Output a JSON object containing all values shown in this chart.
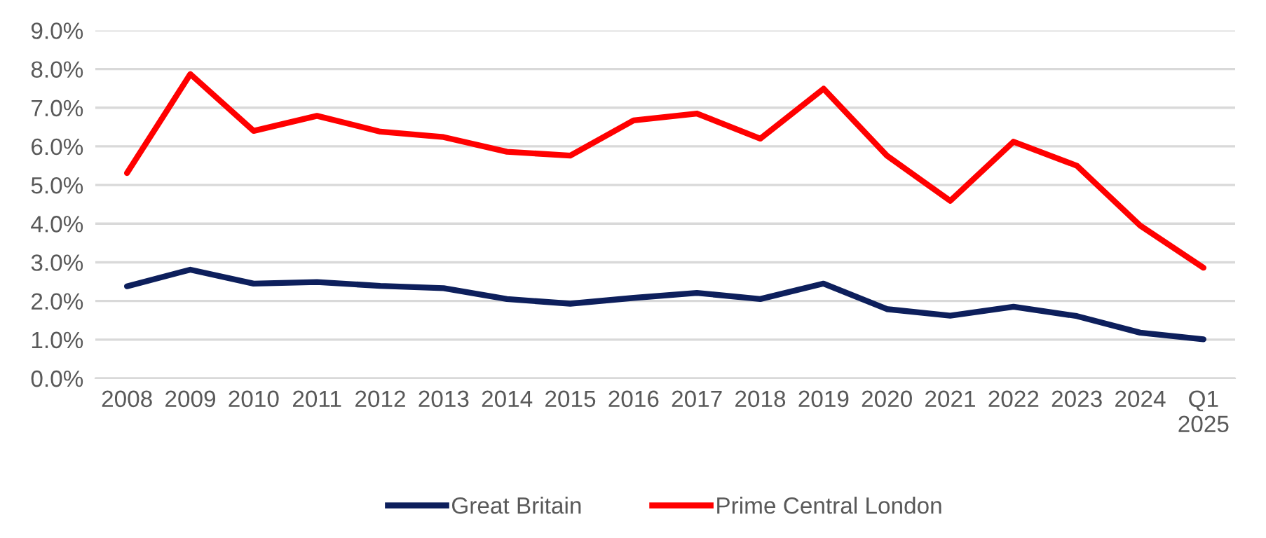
{
  "chart_data": {
    "type": "line",
    "categories": [
      "2008",
      "2009",
      "2010",
      "2011",
      "2012",
      "2013",
      "2014",
      "2015",
      "2016",
      "2017",
      "2018",
      "2019",
      "2020",
      "2021",
      "2022",
      "2023",
      "2024",
      "Q1\n2025"
    ],
    "series": [
      {
        "name": "Great Britain",
        "color": "#0d1f5c",
        "values": [
          2.38,
          2.81,
          2.45,
          2.49,
          2.39,
          2.33,
          2.05,
          1.93,
          2.08,
          2.21,
          2.05,
          2.45,
          1.79,
          1.62,
          1.85,
          1.61,
          1.18,
          1.01
        ]
      },
      {
        "name": "Prime Central London",
        "color": "#ff0000",
        "values": [
          5.31,
          7.87,
          6.4,
          6.79,
          6.38,
          6.24,
          5.86,
          5.76,
          6.67,
          6.85,
          6.2,
          7.49,
          5.76,
          4.59,
          6.12,
          5.5,
          3.95,
          2.86
        ]
      }
    ],
    "ylim": [
      0,
      9
    ],
    "yticks": [
      {
        "value": 0,
        "label": "0.0%"
      },
      {
        "value": 1,
        "label": "1.0%"
      },
      {
        "value": 2,
        "label": "2.0%"
      },
      {
        "value": 3,
        "label": "3.0%"
      },
      {
        "value": 4,
        "label": "4.0%"
      },
      {
        "value": 5,
        "label": "5.0%"
      },
      {
        "value": 6,
        "label": "6.0%"
      },
      {
        "value": 7,
        "label": "7.0%"
      },
      {
        "value": 8,
        "label": "8.0%"
      },
      {
        "value": 9,
        "label": "9.0%"
      }
    ],
    "grid": "y",
    "legend": "bottom",
    "marker": "none",
    "line_style": "solid"
  }
}
